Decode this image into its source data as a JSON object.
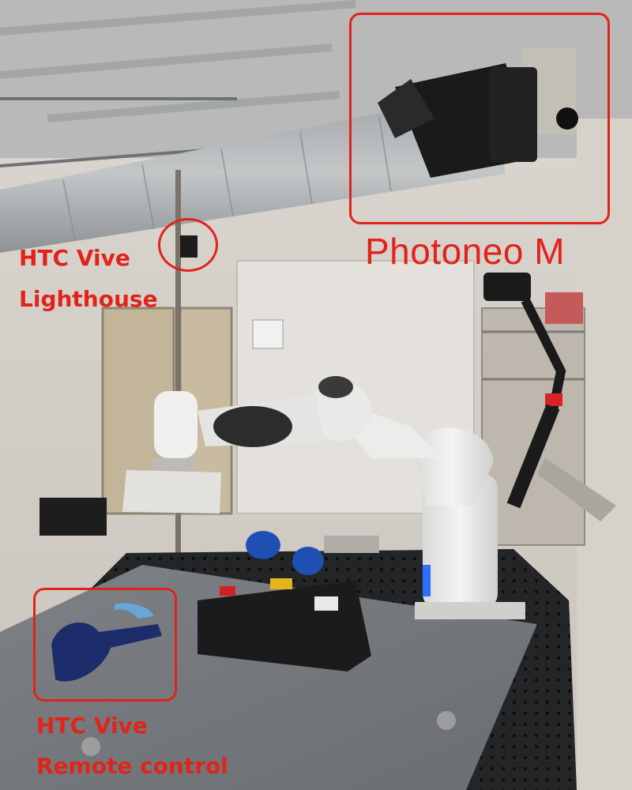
{
  "annotations": {
    "photoneo": {
      "label": "Photoneo M"
    },
    "lighthouse": {
      "line1": "HTC Vive",
      "line2": "Lighthouse"
    },
    "remote": {
      "line1": "HTC Vive",
      "line2": "Remote control"
    }
  },
  "colors": {
    "annotation": "#e2231a"
  }
}
